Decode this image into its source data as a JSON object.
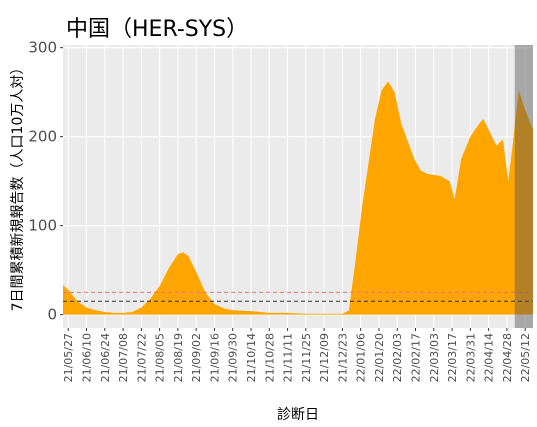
{
  "chart_data": {
    "type": "area",
    "title": "中国（HER-SYS）",
    "xlabel": "診断日",
    "ylabel": "7日間累積新規報告数（人口10万人対）",
    "color": "#ffa500",
    "grid": true,
    "x": [
      "21/05/23",
      "21/05/27",
      "21/06/03",
      "21/06/10",
      "21/06/17",
      "21/06/24",
      "21/07/01",
      "21/07/08",
      "21/07/15",
      "21/07/22",
      "21/07/29",
      "21/08/05",
      "21/08/12",
      "21/08/19",
      "21/08/23",
      "21/08/27",
      "21/09/02",
      "21/09/09",
      "21/09/16",
      "21/09/23",
      "21/09/30",
      "21/10/14",
      "21/10/28",
      "21/11/11",
      "21/11/25",
      "21/12/09",
      "21/12/23",
      "21/12/28",
      "22/01/02",
      "22/01/07",
      "22/01/12",
      "22/01/17",
      "22/01/22",
      "22/01/27",
      "22/02/01",
      "22/02/06",
      "22/02/11",
      "22/02/16",
      "22/02/21",
      "22/02/26",
      "22/03/08",
      "22/03/15",
      "22/03/19",
      "22/03/24",
      "22/03/31",
      "22/04/07",
      "22/04/10",
      "22/04/15",
      "22/04/20",
      "22/04/25",
      "22/04/29",
      "22/05/02",
      "22/05/07",
      "22/05/12",
      "22/05/18"
    ],
    "values": [
      33,
      28,
      15,
      8,
      5,
      3,
      2,
      2,
      3,
      8,
      18,
      32,
      52,
      68,
      70,
      66,
      48,
      25,
      12,
      7,
      5,
      4,
      2,
      2,
      1,
      1,
      1,
      5,
      60,
      120,
      170,
      220,
      252,
      262,
      250,
      215,
      195,
      175,
      162,
      158,
      156,
      150,
      130,
      175,
      200,
      215,
      220,
      205,
      190,
      197,
      150,
      185,
      252,
      230,
      208
    ],
    "xlim": [
      "21/05/23",
      "22/05/18"
    ],
    "xticks": [
      "21/05/27",
      "21/06/10",
      "21/06/24",
      "21/07/08",
      "21/07/22",
      "21/08/05",
      "21/08/19",
      "21/09/02",
      "21/09/16",
      "21/09/30",
      "21/10/14",
      "21/10/28",
      "21/11/11",
      "21/11/25",
      "21/12/09",
      "21/12/23",
      "22/01/06",
      "22/01/20",
      "22/02/03",
      "22/02/17",
      "22/03/03",
      "22/03/17",
      "22/03/31",
      "22/04/14",
      "22/04/28",
      "22/05/12"
    ],
    "ylim": [
      -15,
      303
    ],
    "yticks": [
      0,
      100,
      200,
      300
    ],
    "hlines": [
      {
        "value": 25,
        "color": "#e8736b"
      },
      {
        "value": 15,
        "color": "#333333"
      }
    ],
    "shaded_range": [
      "22/05/04",
      "22/05/18"
    ]
  }
}
